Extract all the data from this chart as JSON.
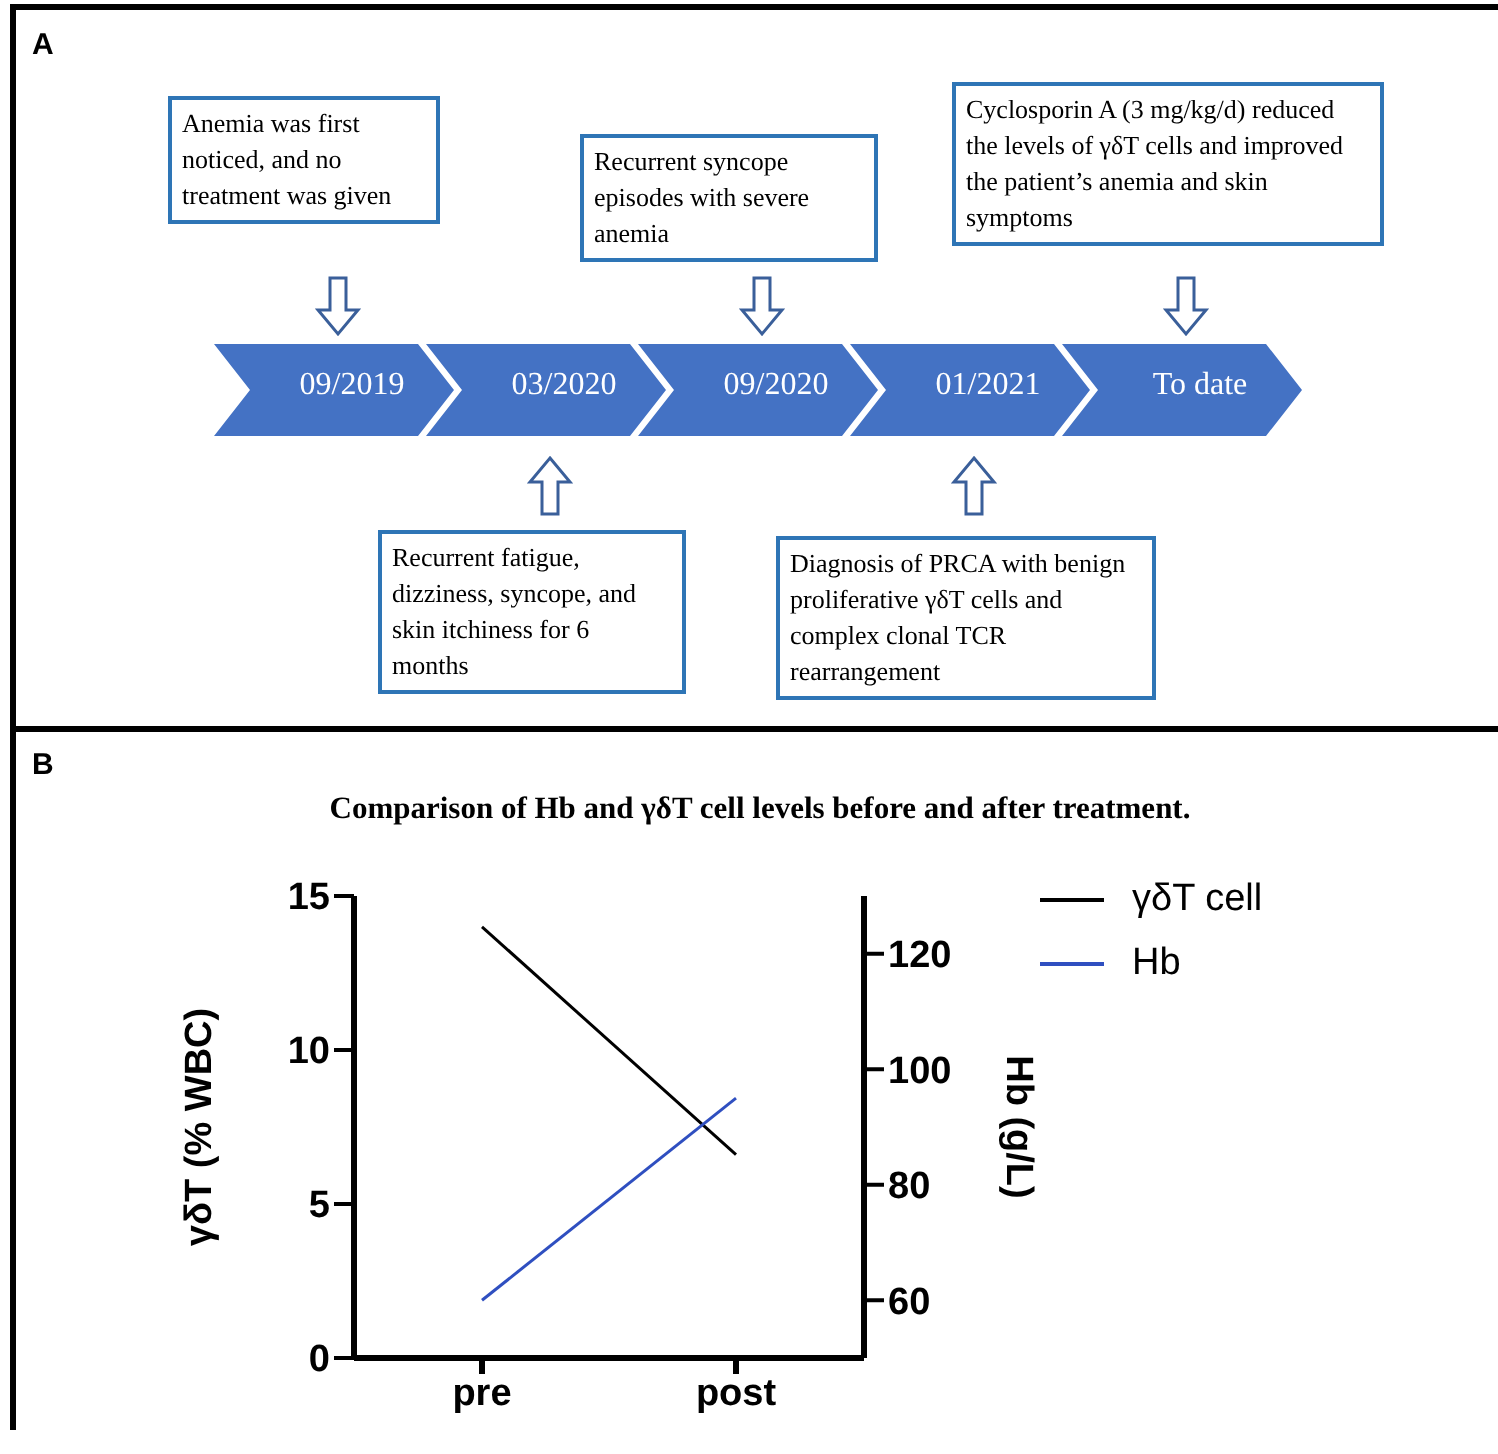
{
  "chart_data": [
    {
      "type": "other",
      "title": "A",
      "color": "#4472c4",
      "categories": [
        "09/2019",
        "03/2020",
        "09/2020",
        "01/2021",
        "To date"
      ],
      "annotations": [
        "Anemia was first noticed, and no treatment was given",
        "Recurrent fatigue, dizziness, syncope, and skin itchiness for 6 months",
        "Recurrent syncope episodes with severe anemia",
        "Diagnosis of PRCA with benign proliferative γδT cells and complex clonal TCR rearrangement",
        "Cyclosporin A (3 mg/kg/d) reduced the levels of γδT cells and improved the patient’s anemia and skin symptoms"
      ]
    },
    {
      "type": "line",
      "title": "Comparison of Hb and γδT cell levels before and after treatment.",
      "annotations": [
        "B"
      ],
      "categories": [
        "pre",
        "post"
      ],
      "series": [
        {
          "name": "γδT cell",
          "color": "#000000",
          "values": [
            14,
            6.6
          ]
        },
        {
          "name": "Hb",
          "color": "#2f4fc0",
          "values": [
            60,
            95
          ],
          "axis": "y2"
        }
      ],
      "ylabel": "γδT (% WBC)",
      "y2label": "Hb (g/L)",
      "ylim": [
        0,
        15
      ],
      "yticks": [
        0,
        5,
        10,
        15
      ],
      "y2lim": [
        50,
        130
      ],
      "y2ticks": [
        60,
        80,
        100,
        120
      ],
      "legend": "top right",
      "marker": "none"
    }
  ]
}
